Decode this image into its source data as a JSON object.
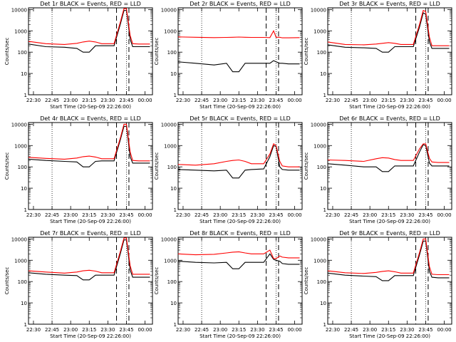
{
  "colors": {
    "events": "#000000",
    "lld": "#ff0000",
    "axes": "#000000",
    "background": "#ffffff"
  },
  "shared": {
    "ylabel": "Counts/sec",
    "xlabel": "Start Time (20-Sep-09 22:26:00)",
    "yticks": [
      "1",
      "10",
      "100",
      "1000",
      "10000"
    ],
    "xticks": [
      "22:30",
      "22:45",
      "23:00",
      "23:15",
      "23:30",
      "23:45",
      "00:00"
    ],
    "y_scale": "log",
    "ylim": [
      1,
      12000
    ],
    "xlim": [
      "22:26",
      "00:06"
    ]
  },
  "chart_data": [
    {
      "type": "line",
      "title": "Det 1r BLACK = Events, RED = LLD",
      "x": [
        "22:26",
        "22:40",
        "22:55",
        "23:05",
        "23:10",
        "23:15",
        "23:20",
        "23:25",
        "23:35",
        "23:40",
        "23:43",
        "23:45",
        "23:48",
        "23:50",
        "23:55",
        "00:04"
      ],
      "series": [
        {
          "name": "Events",
          "values": [
            240,
            180,
            170,
            150,
            100,
            100,
            200,
            200,
            200,
            2000,
            9000,
            9000,
            400,
            180,
            180,
            180
          ]
        },
        {
          "name": "LLD",
          "values": [
            320,
            250,
            230,
            260,
            300,
            330,
            300,
            250,
            250,
            2500,
            11000,
            11000,
            600,
            250,
            240,
            240
          ]
        }
      ],
      "ylim": [
        1,
        12000
      ]
    },
    {
      "type": "line",
      "title": "Det 2r BLACK = Events, RED = LLD",
      "x": [
        "22:26",
        "22:40",
        "22:55",
        "23:05",
        "23:10",
        "23:15",
        "23:20",
        "23:25",
        "23:35",
        "23:40",
        "23:43",
        "23:45",
        "23:48",
        "23:50",
        "23:55",
        "00:04"
      ],
      "series": [
        {
          "name": "Events",
          "values": [
            35,
            30,
            25,
            30,
            12,
            12,
            30,
            30,
            30,
            30,
            40,
            35,
            30,
            30,
            28,
            28
          ]
        },
        {
          "name": "LLD",
          "values": [
            520,
            500,
            480,
            490,
            500,
            510,
            500,
            490,
            490,
            480,
            1000,
            500,
            500,
            470,
            470,
            480
          ]
        }
      ],
      "ylim": [
        1,
        12000
      ]
    },
    {
      "type": "line",
      "title": "Det 3r BLACK = Events, RED = LLD",
      "x": [
        "22:26",
        "22:40",
        "22:55",
        "23:05",
        "23:10",
        "23:15",
        "23:20",
        "23:25",
        "23:35",
        "23:40",
        "23:43",
        "23:45",
        "23:48",
        "23:50",
        "23:55",
        "00:04"
      ],
      "series": [
        {
          "name": "Events",
          "values": [
            220,
            170,
            160,
            150,
            100,
            100,
            180,
            180,
            180,
            1500,
            7000,
            6000,
            300,
            150,
            150,
            150
          ]
        },
        {
          "name": "LLD",
          "values": [
            300,
            230,
            220,
            240,
            260,
            280,
            260,
            230,
            230,
            2000,
            9000,
            8000,
            500,
            200,
            200,
            200
          ]
        }
      ],
      "ylim": [
        1,
        12000
      ]
    },
    {
      "type": "line",
      "title": "Det 4r BLACK = Events, RED = LLD",
      "x": [
        "22:26",
        "22:40",
        "22:55",
        "23:05",
        "23:10",
        "23:15",
        "23:20",
        "23:25",
        "23:35",
        "23:40",
        "23:43",
        "23:45",
        "23:48",
        "23:50",
        "23:55",
        "00:04"
      ],
      "series": [
        {
          "name": "Events",
          "values": [
            230,
            200,
            180,
            170,
            100,
            100,
            180,
            190,
            190,
            1800,
            8000,
            8000,
            300,
            150,
            150,
            150
          ]
        },
        {
          "name": "LLD",
          "values": [
            280,
            250,
            230,
            260,
            300,
            320,
            290,
            240,
            240,
            2200,
            10000,
            10000,
            500,
            200,
            190,
            190
          ]
        }
      ],
      "ylim": [
        1,
        12000
      ]
    },
    {
      "type": "line",
      "title": "Det 5r BLACK = Events, RED = LLD",
      "x": [
        "22:26",
        "22:40",
        "22:55",
        "23:05",
        "23:10",
        "23:15",
        "23:20",
        "23:25",
        "23:35",
        "23:40",
        "23:43",
        "23:45",
        "23:48",
        "23:50",
        "23:55",
        "00:04"
      ],
      "series": [
        {
          "name": "Events",
          "values": [
            75,
            70,
            65,
            70,
            30,
            30,
            70,
            75,
            80,
            300,
            1000,
            900,
            100,
            75,
            70,
            70
          ]
        },
        {
          "name": "LLD",
          "values": [
            130,
            120,
            140,
            180,
            200,
            210,
            180,
            140,
            140,
            400,
            1200,
            1000,
            180,
            110,
            100,
            100
          ]
        }
      ],
      "ylim": [
        1,
        12000
      ]
    },
    {
      "type": "line",
      "title": "Det 6r BLACK = Events, RED = LLD",
      "x": [
        "22:26",
        "22:40",
        "22:55",
        "23:05",
        "23:10",
        "23:15",
        "23:20",
        "23:25",
        "23:35",
        "23:40",
        "23:43",
        "23:45",
        "23:48",
        "23:50",
        "23:55",
        "00:04"
      ],
      "series": [
        {
          "name": "Events",
          "values": [
            140,
            120,
            100,
            100,
            60,
            60,
            110,
            110,
            110,
            500,
            1100,
            1000,
            150,
            110,
            110,
            110
          ]
        },
        {
          "name": "LLD",
          "values": [
            210,
            200,
            180,
            240,
            270,
            260,
            220,
            200,
            200,
            700,
            1200,
            1200,
            250,
            170,
            160,
            160
          ]
        }
      ],
      "ylim": [
        1,
        12000
      ]
    },
    {
      "type": "line",
      "title": "Det 7r BLACK = Events, RED = LLD",
      "x": [
        "22:26",
        "22:40",
        "22:55",
        "23:05",
        "23:10",
        "23:15",
        "23:20",
        "23:25",
        "23:35",
        "23:40",
        "23:43",
        "23:45",
        "23:48",
        "23:50",
        "23:55",
        "00:04"
      ],
      "series": [
        {
          "name": "Events",
          "values": [
            260,
            220,
            200,
            190,
            120,
            120,
            200,
            200,
            200,
            2000,
            9000,
            9000,
            350,
            160,
            160,
            160
          ]
        },
        {
          "name": "LLD",
          "values": [
            320,
            280,
            250,
            280,
            320,
            340,
            310,
            260,
            260,
            2500,
            11000,
            11000,
            550,
            220,
            220,
            220
          ]
        }
      ],
      "ylim": [
        1,
        12000
      ]
    },
    {
      "type": "line",
      "title": "Det 8r BLACK = Events, RED = LLD",
      "x": [
        "22:26",
        "22:40",
        "22:55",
        "23:05",
        "23:10",
        "23:15",
        "23:20",
        "23:25",
        "23:35",
        "23:40",
        "23:43",
        "23:45",
        "23:48",
        "23:50",
        "23:55",
        "00:04"
      ],
      "series": [
        {
          "name": "Events",
          "values": [
            900,
            800,
            750,
            800,
            400,
            400,
            800,
            800,
            800,
            2000,
            1100,
            1000,
            900,
            700,
            650,
            650
          ]
        },
        {
          "name": "LLD",
          "values": [
            2000,
            1800,
            1900,
            2200,
            2400,
            2500,
            2200,
            2000,
            2000,
            3000,
            1200,
            1200,
            1600,
            1400,
            1300,
            1300
          ]
        }
      ],
      "ylim": [
        1,
        12000
      ]
    },
    {
      "type": "line",
      "title": "Det 9r BLACK = Events, RED = LLD",
      "x": [
        "22:26",
        "22:40",
        "22:55",
        "23:05",
        "23:10",
        "23:15",
        "23:20",
        "23:25",
        "23:35",
        "23:40",
        "23:43",
        "23:45",
        "23:48",
        "23:50",
        "23:55",
        "00:04"
      ],
      "series": [
        {
          "name": "Events",
          "values": [
            250,
            200,
            180,
            170,
            110,
            110,
            190,
            190,
            190,
            1800,
            8000,
            8000,
            300,
            160,
            150,
            150
          ]
        },
        {
          "name": "LLD",
          "values": [
            320,
            260,
            240,
            270,
            300,
            320,
            290,
            250,
            250,
            2300,
            10000,
            10000,
            500,
            220,
            210,
            210
          ]
        }
      ],
      "ylim": [
        1,
        12000
      ]
    }
  ]
}
